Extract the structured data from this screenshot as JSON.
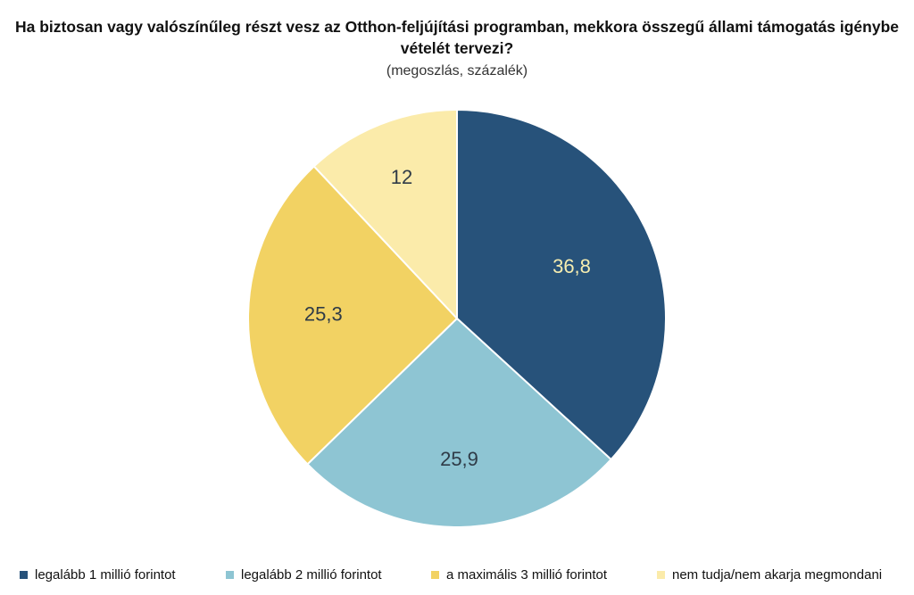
{
  "chart_data": {
    "type": "pie",
    "title": "Ha biztosan vagy valószínűleg részt vesz az Otthon-feljújítási programban, mekkora összegű állami támogatás igénybe vételét tervezi?",
    "subtitle": "(megoszlás, százalék)",
    "slices": [
      {
        "name": "legalább 1 millió forintot",
        "value": 36.8,
        "label": "36,8",
        "color": "#27527A",
        "label_color": "#F6EDB0"
      },
      {
        "name": "legalább 2 millió forintot",
        "value": 25.9,
        "label": "25,9",
        "color": "#8EC5D3",
        "label_color": "#2F3B47"
      },
      {
        "name": "a maximális 3 millió forintot",
        "value": 25.3,
        "label": "25,3",
        "color": "#F2D263",
        "label_color": "#2F3B47"
      },
      {
        "name": "nem tudja/nem akarja megmondani",
        "value": 12,
        "label": "12",
        "color": "#FBEBAA",
        "label_color": "#2F3B47"
      }
    ],
    "legend_position": "bottom",
    "start_angle": "12 o'clock",
    "direction": "clockwise"
  }
}
